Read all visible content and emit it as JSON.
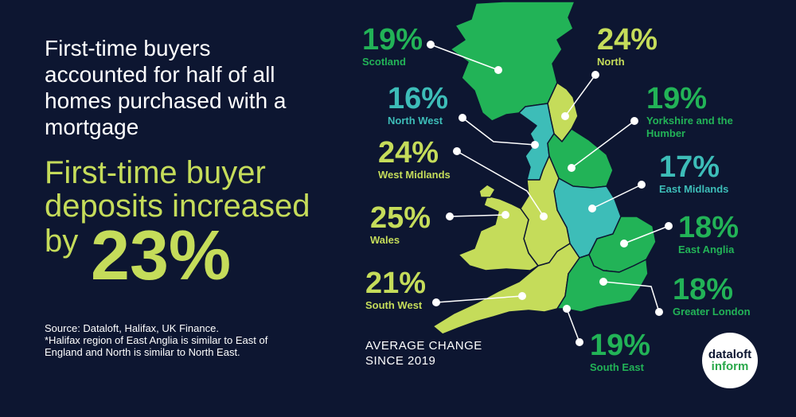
{
  "headline": "First-time buyers accounted for half of all homes purchased with a mortgage",
  "deposit": {
    "line": "First-time buyer deposits increased",
    "by": "by",
    "value": "23%"
  },
  "source": {
    "line1": "Source:  Dataloft, Halifax, UK Finance.",
    "line2": "*Halifax region of East Anglia is similar to East of England and North is similar to North East."
  },
  "avg_change": {
    "line1": "AVERAGE CHANGE",
    "line2": "SINCE 2019"
  },
  "logo": {
    "line1": "dataloft",
    "line2": "inform"
  },
  "colors": {
    "background": "#0d1631",
    "lime": "#c5dc5a",
    "green": "#22b357",
    "teal": "#3dbdb8",
    "white": "#ffffff"
  },
  "regions": [
    {
      "id": "scotland",
      "name": "Scotland",
      "value": "19%",
      "color": "#22b357"
    },
    {
      "id": "north",
      "name": "North",
      "value": "24%",
      "color": "#c5dc5a"
    },
    {
      "id": "north-west",
      "name": "North West",
      "value": "16%",
      "color": "#3dbdb8"
    },
    {
      "id": "yorkshire",
      "name": "Yorkshire and the Humber",
      "value": "19%",
      "color": "#22b357"
    },
    {
      "id": "west-midlands",
      "name": "West Midlands",
      "value": "24%",
      "color": "#c5dc5a"
    },
    {
      "id": "east-midlands",
      "name": "East Midlands",
      "value": "17%",
      "color": "#3dbdb8"
    },
    {
      "id": "wales",
      "name": "Wales",
      "value": "25%",
      "color": "#c5dc5a"
    },
    {
      "id": "east-anglia",
      "name": "East Anglia",
      "value": "18%",
      "color": "#22b357"
    },
    {
      "id": "south-west",
      "name": "South West",
      "value": "21%",
      "color": "#c5dc5a"
    },
    {
      "id": "greater-london",
      "name": "Greater London",
      "value": "18%",
      "color": "#22b357"
    },
    {
      "id": "south-east",
      "name": "South East",
      "value": "19%",
      "color": "#22b357"
    }
  ]
}
